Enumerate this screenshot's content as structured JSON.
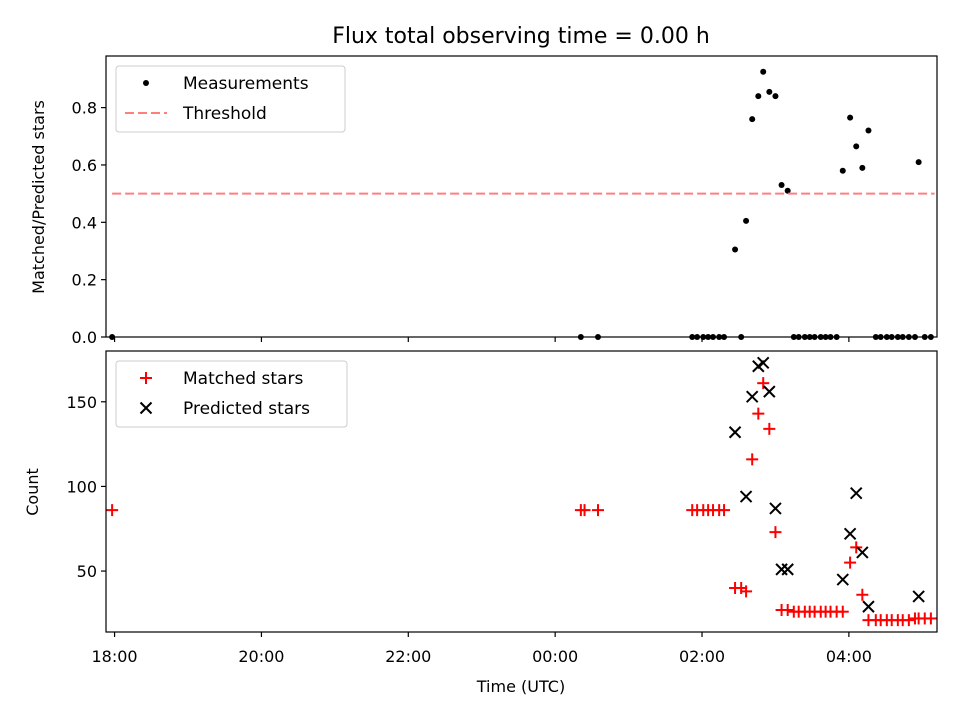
{
  "chart_data": [
    {
      "type": "scatter",
      "title": "Flux total observing time = 0.00 h",
      "xlabel": "",
      "ylabel": "Matched/Predicted stars",
      "xlim": [
        "17:53",
        "05:12"
      ],
      "ylim": [
        0.0,
        0.98
      ],
      "yticks": [
        0.0,
        0.2,
        0.4,
        0.6,
        0.8
      ],
      "ytick_labels": [
        "0.0",
        "0.2",
        "0.4",
        "0.6",
        "0.8"
      ],
      "xticks": [
        "18:00",
        "20:00",
        "22:00",
        "00:00",
        "02:00",
        "04:00"
      ],
      "legend": {
        "position": "top-left",
        "entries": [
          "Measurements",
          "Threshold"
        ]
      },
      "series": [
        {
          "name": "Measurements",
          "marker": "dot",
          "color": "#000000",
          "points": [
            [
              "17:58",
              0.0
            ],
            [
              "00:21",
              0.0
            ],
            [
              "00:35",
              0.0
            ],
            [
              "01:52",
              0.0
            ],
            [
              "01:56",
              0.0
            ],
            [
              "02:01",
              0.0
            ],
            [
              "02:05",
              0.0
            ],
            [
              "02:09",
              0.0
            ],
            [
              "02:14",
              0.0
            ],
            [
              "02:18",
              0.0
            ],
            [
              "02:27",
              0.305
            ],
            [
              "02:32",
              0.0
            ],
            [
              "02:36",
              0.405
            ],
            [
              "02:41",
              0.76
            ],
            [
              "02:46",
              0.84
            ],
            [
              "02:50",
              0.925
            ],
            [
              "02:55",
              0.855
            ],
            [
              "03:00",
              0.84
            ],
            [
              "03:05",
              0.53
            ],
            [
              "03:10",
              0.51
            ],
            [
              "03:15",
              0.0
            ],
            [
              "03:19",
              0.0
            ],
            [
              "03:24",
              0.0
            ],
            [
              "03:28",
              0.0
            ],
            [
              "03:32",
              0.0
            ],
            [
              "03:37",
              0.0
            ],
            [
              "03:41",
              0.0
            ],
            [
              "03:45",
              0.0
            ],
            [
              "03:50",
              0.0
            ],
            [
              "03:55",
              0.58
            ],
            [
              "04:01",
              0.765
            ],
            [
              "04:06",
              0.665
            ],
            [
              "04:11",
              0.59
            ],
            [
              "04:16",
              0.72
            ],
            [
              "04:22",
              0.0
            ],
            [
              "04:26",
              0.0
            ],
            [
              "04:31",
              0.0
            ],
            [
              "04:35",
              0.0
            ],
            [
              "04:40",
              0.0
            ],
            [
              "04:44",
              0.0
            ],
            [
              "04:49",
              0.0
            ],
            [
              "04:54",
              0.0
            ],
            [
              "04:57",
              0.61
            ],
            [
              "05:02",
              0.0
            ],
            [
              "05:07",
              0.0
            ]
          ]
        },
        {
          "name": "Threshold",
          "style": "dashed-line",
          "color": "#ff7f7f",
          "points": [
            [
              "17:58",
              0.5
            ],
            [
              "05:10",
              0.5
            ]
          ]
        }
      ]
    },
    {
      "type": "scatter",
      "title": "",
      "xlabel": "Time (UTC)",
      "ylabel": "Count",
      "xlim": [
        "17:53",
        "05:12"
      ],
      "ylim": [
        14,
        180
      ],
      "yticks": [
        50,
        100,
        150
      ],
      "ytick_labels": [
        "50",
        "100",
        "150"
      ],
      "xticks": [
        "18:00",
        "20:00",
        "22:00",
        "00:00",
        "02:00",
        "04:00"
      ],
      "legend": {
        "position": "top-left",
        "entries": [
          "Matched stars",
          "Predicted stars"
        ]
      },
      "series": [
        {
          "name": "Matched stars",
          "marker": "plus",
          "color": "#ff0000",
          "points": [
            [
              "17:58",
              86
            ],
            [
              "00:21",
              86
            ],
            [
              "00:24",
              86
            ],
            [
              "00:35",
              86
            ],
            [
              "01:52",
              86
            ],
            [
              "01:56",
              86
            ],
            [
              "02:01",
              86
            ],
            [
              "02:05",
              86
            ],
            [
              "02:09",
              86
            ],
            [
              "02:14",
              86
            ],
            [
              "02:18",
              86
            ],
            [
              "02:27",
              40
            ],
            [
              "02:32",
              40
            ],
            [
              "02:36",
              38
            ],
            [
              "02:41",
              116
            ],
            [
              "02:46",
              143
            ],
            [
              "02:50",
              161
            ],
            [
              "02:55",
              134
            ],
            [
              "03:00",
              73
            ],
            [
              "03:05",
              27
            ],
            [
              "03:10",
              27
            ],
            [
              "03:15",
              26
            ],
            [
              "03:19",
              26
            ],
            [
              "03:24",
              26
            ],
            [
              "03:28",
              26
            ],
            [
              "03:32",
              26
            ],
            [
              "03:37",
              26
            ],
            [
              "03:41",
              26
            ],
            [
              "03:45",
              26
            ],
            [
              "03:50",
              26
            ],
            [
              "03:55",
              26
            ],
            [
              "04:01",
              55
            ],
            [
              "04:06",
              64
            ],
            [
              "04:11",
              36
            ],
            [
              "04:16",
              21
            ],
            [
              "04:22",
              21
            ],
            [
              "04:26",
              21
            ],
            [
              "04:31",
              21
            ],
            [
              "04:35",
              21
            ],
            [
              "04:40",
              21
            ],
            [
              "04:44",
              21
            ],
            [
              "04:49",
              21
            ],
            [
              "04:54",
              22
            ],
            [
              "04:57",
              22
            ],
            [
              "05:02",
              22
            ],
            [
              "05:07",
              22
            ]
          ]
        },
        {
          "name": "Predicted stars",
          "marker": "x",
          "color": "#000000",
          "points": [
            [
              "02:27",
              132
            ],
            [
              "02:36",
              94
            ],
            [
              "02:41",
              153
            ],
            [
              "02:46",
              171
            ],
            [
              "02:50",
              173
            ],
            [
              "02:55",
              156
            ],
            [
              "03:00",
              87
            ],
            [
              "03:05",
              51
            ],
            [
              "03:10",
              51
            ],
            [
              "03:55",
              45
            ],
            [
              "04:01",
              72
            ],
            [
              "04:06",
              96
            ],
            [
              "04:11",
              61
            ],
            [
              "04:16",
              29
            ],
            [
              "04:57",
              35
            ]
          ]
        }
      ]
    }
  ]
}
